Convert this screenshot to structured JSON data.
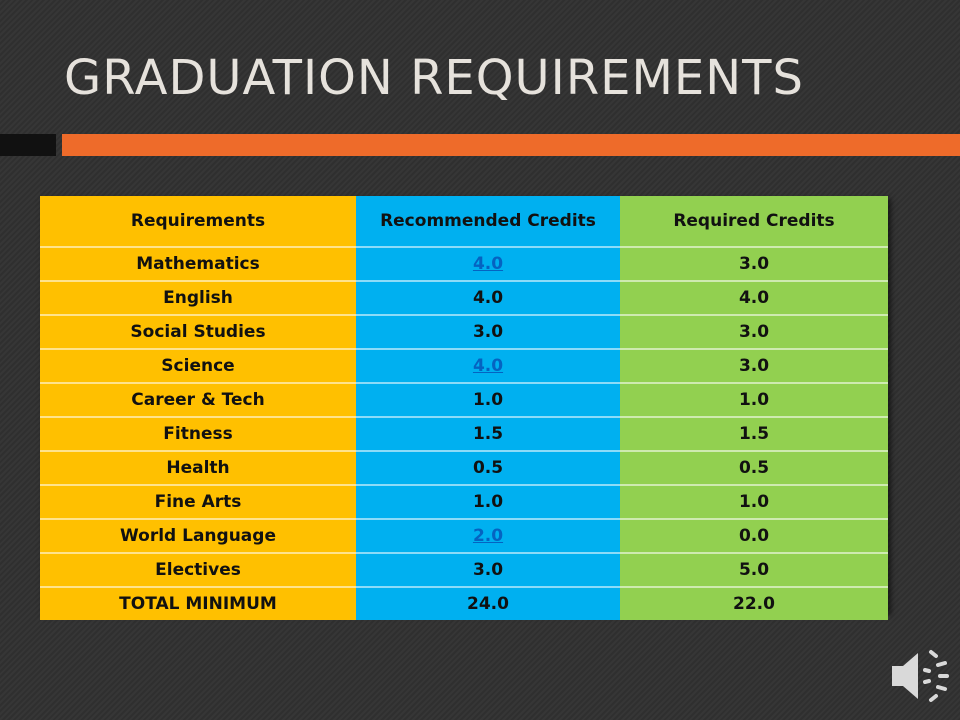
{
  "title": "GRADUATION REQUIREMENTS",
  "table": {
    "headers": [
      "Requirements",
      "Recommended Credits",
      "Required Credits"
    ],
    "rows": [
      {
        "subject": "Mathematics",
        "recommended": "4.0",
        "required": "3.0",
        "recommended_link": true
      },
      {
        "subject": "English",
        "recommended": "4.0",
        "required": "4.0",
        "recommended_link": false
      },
      {
        "subject": "Social Studies",
        "recommended": "3.0",
        "required": "3.0",
        "recommended_link": false
      },
      {
        "subject": "Science",
        "recommended": "4.0",
        "required": "3.0",
        "recommended_link": true
      },
      {
        "subject": "Career & Tech",
        "recommended": "1.0",
        "required": "1.0",
        "recommended_link": false
      },
      {
        "subject": "Fitness",
        "recommended": "1.5",
        "required": "1.5",
        "recommended_link": false
      },
      {
        "subject": "Health",
        "recommended": "0.5",
        "required": "0.5",
        "recommended_link": false
      },
      {
        "subject": "Fine Arts",
        "recommended": "1.0",
        "required": "1.0",
        "recommended_link": false
      },
      {
        "subject": "World Language",
        "recommended": "2.0",
        "required": "0.0",
        "recommended_link": true
      },
      {
        "subject": "Electives",
        "recommended": "3.0",
        "required": "5.0",
        "recommended_link": false
      },
      {
        "subject": "TOTAL MINIMUM",
        "recommended": "24.0",
        "required": "22.0",
        "recommended_link": false
      }
    ]
  },
  "colors": {
    "background": "#2f2f2f",
    "accent_bar": "#ee6b2a",
    "requirements_column": "#ffc000",
    "recommended_column": "#00b0f0",
    "required_column": "#92d050",
    "link": "#0563c1"
  },
  "icons": {
    "audio": "speaker-icon"
  }
}
